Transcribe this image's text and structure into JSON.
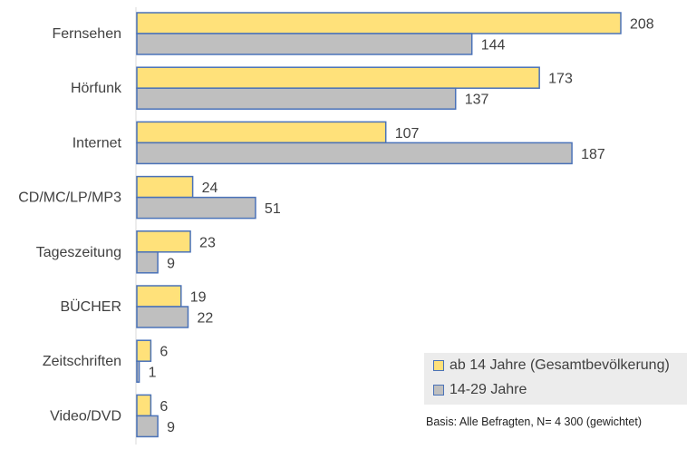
{
  "chart_data": {
    "type": "bar",
    "orientation": "horizontal",
    "categories": [
      "Fernsehen",
      "Hörfunk",
      "Internet",
      "CD/MC/LP/MP3",
      "Tageszeitung",
      "BÜCHER",
      "Zeitschriften",
      "Video/DVD"
    ],
    "series": [
      {
        "name": "ab 14 Jahre (Gesamtbevölkerung)",
        "values": [
          208,
          173,
          107,
          24,
          23,
          19,
          6,
          6
        ],
        "color": "#ffe17a"
      },
      {
        "name": "14-29 Jahre",
        "values": [
          144,
          137,
          187,
          51,
          9,
          22,
          1,
          9
        ],
        "color": "#bfbfbf"
      }
    ],
    "xlim": [
      0,
      210
    ],
    "grid": false,
    "legend_position": "bottom-right",
    "note": "Basis: Alle Befragten, N= 4 300 (gewichtet)"
  }
}
